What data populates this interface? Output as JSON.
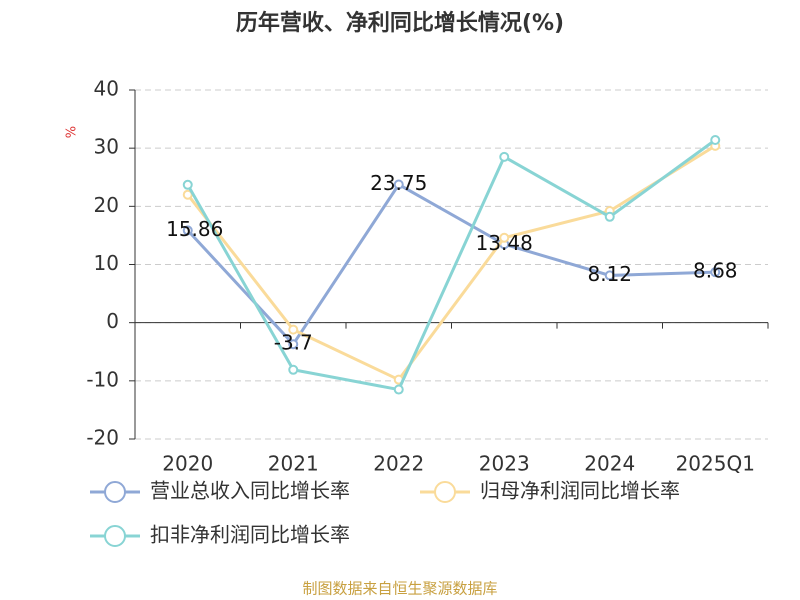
{
  "chart_data": {
    "type": "line",
    "title": "历年营收、净利同比增长情况(%)",
    "y_label": "%",
    "source": "制图数据来自恒生聚源数据库",
    "categories": [
      "2020",
      "2021",
      "2022",
      "2023",
      "2024",
      "2025Q1"
    ],
    "series": [
      {
        "name": "营业总收入同比增长率",
        "color": "#8fa8d6",
        "values": [
          15.86,
          -3.7,
          23.75,
          13.48,
          8.12,
          8.68
        ],
        "show_labels": true
      },
      {
        "name": "归母净利润同比增长率",
        "color": "#fadb9a",
        "values": [
          22.0,
          -1.2,
          -9.8,
          14.6,
          19.2,
          30.4
        ],
        "show_labels": false
      },
      {
        "name": "扣非净利润同比增长率",
        "color": "#88d4d4",
        "values": [
          23.7,
          -8.1,
          -11.5,
          28.5,
          18.2,
          31.4
        ],
        "show_labels": false
      }
    ],
    "ylim": [
      -20,
      40
    ],
    "yticks": [
      -20,
      -10,
      0,
      10,
      20,
      30,
      40
    ],
    "grid": true
  }
}
